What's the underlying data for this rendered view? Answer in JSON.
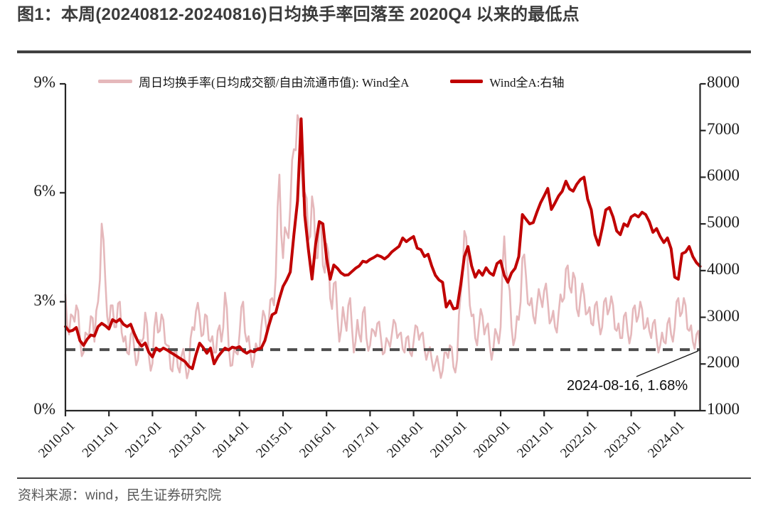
{
  "title": {
    "text": "图1：本周(20240812-20240816)日均换手率回落至 2020Q4 以来的最低点"
  },
  "source": "资料来源：wind，民生证券研究院",
  "chart_data": {
    "type": "line",
    "title": "本周(20240812-20240816)日均换手率回落至 2020Q4 以来的最低点",
    "legend_position": "top",
    "grid": false,
    "left_axis": {
      "ticks": [
        "0%",
        "3%",
        "6%",
        "9%"
      ],
      "range": [
        0,
        9
      ],
      "unit": "%"
    },
    "right_axis": {
      "ticks": [
        "1000",
        "2000",
        "3000",
        "4000",
        "5000",
        "6000",
        "7000",
        "8000"
      ],
      "range": [
        1000,
        8000
      ]
    },
    "x_ticks": [
      "2010-01",
      "2011-01",
      "2012-01",
      "2013-01",
      "2014-01",
      "2015-01",
      "2016-01",
      "2017-01",
      "2018-01",
      "2019-01",
      "2020-01",
      "2021-01",
      "2022-01",
      "2023-01",
      "2024-01"
    ],
    "reference_line": {
      "axis": "left",
      "value": 1.68,
      "color": "#4d4d4d",
      "style": "dashed"
    },
    "annotation": {
      "label": "2024-08-16, 1.68%",
      "date": "2024-08-16",
      "value": 1.68
    },
    "series": [
      {
        "name": "周日均换手率(日均成交额/自由流通市值): Wind全A",
        "axis": "left",
        "color": "#e5b8bb",
        "width": 2.6,
        "start": 2010.0,
        "dt": 0.0416667,
        "values": [
          3.2,
          2.35,
          2.1,
          2.65,
          2.6,
          2.45,
          2.9,
          2.75,
          2.0,
          1.5,
          1.6,
          2.15,
          2.1,
          2.05,
          2.6,
          2.55,
          1.9,
          2.75,
          3.0,
          3.6,
          5.15,
          4.7,
          3.6,
          2.6,
          2.3,
          2.9,
          2.9,
          2.3,
          2.3,
          2.95,
          3.0,
          2.15,
          1.9,
          2.05,
          1.6,
          1.55,
          2.1,
          2.2,
          1.7,
          1.25,
          1.4,
          1.95,
          1.9,
          2.0,
          2.7,
          2.4,
          1.5,
          1.1,
          1.3,
          2.3,
          2.7,
          2.15,
          2.2,
          2.65,
          2.5,
          1.85,
          1.8,
          1.78,
          1.15,
          1.08,
          1.6,
          1.7,
          1.2,
          1.05,
          1.5,
          1.7,
          1.3,
          0.89,
          1.08,
          1.99,
          2.3,
          2.22,
          2.74,
          2.97,
          2.6,
          2.05,
          2.1,
          2.65,
          2.6,
          1.95,
          1.9,
          2.05,
          1.6,
          1.6,
          2.2,
          2.35,
          1.9,
          2.28,
          3.25,
          2.83,
          1.8,
          1.23,
          1.25,
          1.73,
          1.6,
          1.55,
          2.1,
          2.85,
          3.0,
          2.15,
          1.9,
          2.05,
          1.6,
          1.2,
          1.4,
          1.85,
          1.7,
          1.7,
          2.3,
          2.75,
          2.6,
          2.2,
          2.4,
          3.05,
          3.1,
          2.9,
          3.7,
          5.6,
          6.5,
          4.85,
          4.2,
          5.05,
          4.9,
          4.75,
          5.6,
          6.9,
          7.2,
          7.17,
          8.14,
          7.97,
          6.8,
          5.9,
          6.0,
          5.85,
          4.7,
          4.8,
          5.9,
          5.55,
          4.2,
          4.2,
          5.2,
          5.1,
          4.0,
          3.8,
          4.6,
          4.35,
          3.1,
          2.8,
          3.5,
          3.55,
          2.6,
          1.9,
          2.2,
          2.85,
          2.5,
          2.2,
          2.9,
          3.1,
          2.3,
          1.6,
          1.9,
          2.5,
          2.1,
          1.9,
          2.7,
          2.85,
          2.0,
          1.65,
          1.8,
          2.25,
          2.2,
          2.05,
          2.4,
          2.45,
          2.0,
          1.55,
          1.6,
          2.0,
          1.9,
          1.75,
          2.1,
          2.5,
          2.4,
          2.0,
          2.1,
          2.15,
          1.7,
          1.6,
          2.0,
          2.05,
          1.6,
          1.5,
          1.9,
          2.35,
          2.3,
          1.95,
          2.1,
          2.15,
          1.7,
          1.4,
          1.6,
          1.75,
          1.4,
          1.1,
          1.3,
          1.5,
          1.2,
          0.9,
          1.1,
          1.6,
          1.6,
          1.45,
          1.8,
          1.75,
          1.2,
          1.05,
          1.4,
          2.65,
          3.2,
          3.73,
          4.95,
          4.78,
          3.9,
          2.9,
          2.6,
          2.65,
          2.0,
          1.8,
          2.3,
          2.8,
          2.6,
          2.1,
          2.3,
          2.4,
          1.8,
          1.4,
          1.7,
          2.25,
          2.1,
          1.85,
          2.3,
          3.9,
          4.8,
          3.85,
          3.6,
          3.3,
          2.3,
          1.8,
          2.0,
          2.6,
          2.5,
          3.0,
          4.2,
          4.3,
          3.7,
          2.95,
          2.9,
          3.1,
          2.6,
          2.4,
          2.9,
          3.35,
          3.1,
          2.85,
          3.3,
          3.5,
          3.0,
          2.4,
          2.5,
          2.75,
          2.3,
          2.15,
          2.7,
          3.2,
          3.0,
          3.1,
          3.9,
          4.0,
          3.4,
          3.25,
          3.8,
          3.65,
          2.8,
          2.6,
          3.1,
          3.5,
          3.2,
          2.65,
          2.7,
          2.85,
          2.4,
          2.35,
          2.9,
          3.0,
          2.5,
          2.1,
          2.3,
          3.0,
          3.1,
          2.65,
          2.8,
          3.15,
          2.9,
          2.25,
          2.2,
          2.4,
          2.0,
          2.0,
          2.6,
          2.7,
          2.2,
          1.85,
          2.1,
          2.8,
          2.9,
          2.45,
          2.6,
          3.0,
          2.8,
          2.25,
          2.3,
          2.55,
          2.2,
          2.0,
          2.4,
          2.5,
          2.0,
          1.6,
          1.8,
          2.15,
          1.9,
          1.85,
          2.4,
          2.55,
          2.1,
          1.9,
          2.3,
          3.0,
          3.1,
          2.6,
          2.7,
          3.1,
          2.9,
          2.25,
          2.2,
          2.35,
          1.9,
          1.7,
          2.1,
          2.2,
          1.68
        ]
      },
      {
        "name": "Wind全A:右轴",
        "axis": "right",
        "color": "#c00000",
        "width": 4,
        "start": 2010.0,
        "dt": 0.0833333,
        "values": [
          2800,
          2700,
          2720,
          2780,
          2500,
          2400,
          2530,
          2620,
          2600,
          2800,
          2870,
          2820,
          2750,
          2950,
          2900,
          2960,
          2850,
          2800,
          2850,
          2650,
          2480,
          2380,
          2450,
          2250,
          2150,
          2340,
          2280,
          2340,
          2300,
          2250,
          2200,
          2150,
          2100,
          2050,
          1950,
          1900,
          2200,
          2445,
          2350,
          2230,
          2340,
          2005,
          2150,
          2250,
          2340,
          2300,
          2360,
          2340,
          2370,
          2280,
          2230,
          2280,
          2260,
          2320,
          2340,
          2500,
          2800,
          3055,
          3100,
          3400,
          3660,
          3800,
          3970,
          4770,
          5490,
          7250,
          5180,
          4450,
          3820,
          4570,
          5050,
          5000,
          4270,
          3815,
          4120,
          4050,
          3950,
          3900,
          3910,
          3980,
          4050,
          4100,
          4200,
          4180,
          4240,
          4280,
          4330,
          4300,
          4250,
          4310,
          4400,
          4460,
          4520,
          4700,
          4620,
          4680,
          4730,
          4480,
          4450,
          4300,
          4350,
          4100,
          3900,
          3800,
          3750,
          3220,
          3350,
          3180,
          3200,
          3700,
          4300,
          4515,
          4100,
          3860,
          4000,
          3900,
          4060,
          3950,
          3900,
          4150,
          4210,
          3900,
          3750,
          3950,
          4050,
          4300,
          5200,
          5100,
          5000,
          5030,
          5250,
          5450,
          5600,
          5760,
          5310,
          5450,
          5600,
          5700,
          5915,
          5750,
          5700,
          5850,
          5950,
          6000,
          5530,
          5300,
          4770,
          4545,
          4900,
          5300,
          5350,
          5150,
          4850,
          4770,
          5000,
          4950,
          5150,
          5200,
          5150,
          5250,
          5200,
          5050,
          4820,
          4900,
          4730,
          4600,
          4700,
          4470,
          3860,
          3815,
          4360,
          4400,
          4515,
          4300,
          4170,
          4090
        ]
      }
    ]
  }
}
